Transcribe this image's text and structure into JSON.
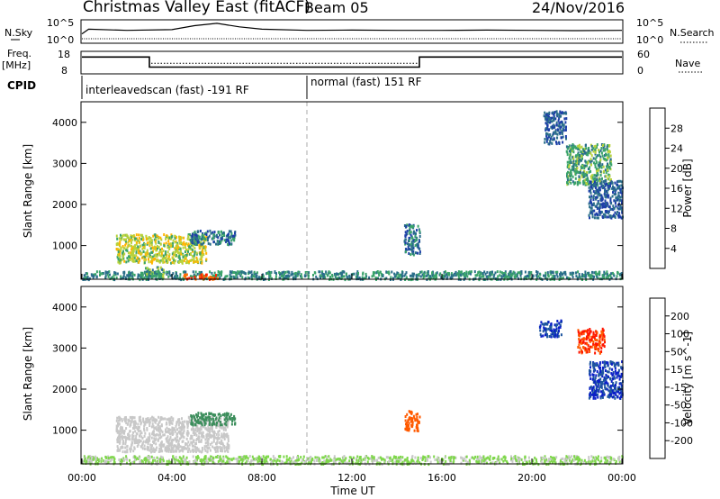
{
  "header": {
    "radar": "Christmas Valley East (fitACF)",
    "beam": "Beam 05",
    "date": "24/Nov/2016"
  },
  "strip_labels": {
    "nsky": "N.Sky",
    "nsky_ticks": [
      "10^5",
      "10^0"
    ],
    "nsearch": "N.Search",
    "nsearch_ticks": [
      "10^5",
      "10^0"
    ],
    "freq_line1": "Freq.",
    "freq_line2": "[MHz]",
    "freq_ticks": [
      "18",
      "8"
    ],
    "nave": "Nave",
    "nave_ticks": [
      "60",
      "0"
    ],
    "cpid": "CPID",
    "cpid_segments": [
      {
        "label": "interleavedscan (fast) -191 RF",
        "start_hr": 0,
        "end_hr": 10
      },
      {
        "label": "normal (fast) 151 RF",
        "start_hr": 10,
        "end_hr": 24
      }
    ]
  },
  "axes": {
    "xlabel": "Time UT",
    "xticks": [
      "00:00",
      "04:00",
      "08:00",
      "12:00",
      "16:00",
      "20:00",
      "00:00"
    ],
    "xlim_hr": [
      0,
      24
    ],
    "ylabel": "Slant Range [km]",
    "yticks": [
      1000,
      2000,
      3000,
      4000
    ],
    "ylim_km": [
      180,
      4500
    ]
  },
  "power_colorbar": {
    "label": "Power [dB]",
    "ticks": [
      "4",
      "8",
      "12",
      "16",
      "20",
      "24",
      "28"
    ],
    "colors": [
      "#0018ff",
      "#1d3fa8",
      "#2a6e8a",
      "#3aa36a",
      "#b8d23c",
      "#ffb400",
      "#ff7000",
      "#ff2000"
    ]
  },
  "velocity_colorbar": {
    "label": "Velocity [m s^-1]",
    "ticks": [
      "200",
      "100",
      "50",
      "15",
      "-15",
      "-50",
      "-100",
      "-200"
    ],
    "colors": [
      "#0a1fc8",
      "#1f56a0",
      "#3c8e5c",
      "#7ed74a",
      "#c8c8c8",
      "#ffd24a",
      "#ff9a1a",
      "#ff5a00",
      "#ff1400"
    ]
  },
  "chart_data": [
    {
      "type": "line",
      "x_hr": [
        0,
        0.3,
        2,
        4,
        5,
        6,
        7,
        8,
        10,
        12,
        14,
        16,
        18,
        20,
        22,
        24
      ],
      "nsky": [
        0.4,
        0.6,
        0.55,
        0.58,
        0.75,
        0.85,
        0.7,
        0.6,
        0.55,
        0.56,
        0.55,
        0.55,
        0.56,
        0.55,
        0.54,
        0.55
      ],
      "freq_mhz": {
        "x_hr": [
          0,
          3,
          3,
          15,
          15,
          24
        ],
        "values": [
          15.5,
          15.5,
          11,
          11,
          15.5,
          15.5
        ]
      },
      "nave": {
        "x_hr": [
          0,
          3,
          3,
          15,
          15,
          24
        ],
        "values": [
          45,
          45,
          28,
          28,
          45,
          45
        ]
      }
    },
    {
      "type": "heatmap",
      "variable": "power",
      "clusters": [
        {
          "t_hr": [
            0,
            24
          ],
          "r_km": [
            200,
            400
          ],
          "value": 12
        },
        {
          "t_hr": [
            4.5,
            6
          ],
          "r_km": [
            200,
            330
          ],
          "value": 28
        },
        {
          "t_hr": [
            1.5,
            5.5
          ],
          "r_km": [
            600,
            1300
          ],
          "value": 18
        },
        {
          "t_hr": [
            4.8,
            6.8
          ],
          "r_km": [
            1050,
            1400
          ],
          "value": 10
        },
        {
          "t_hr": [
            2.8,
            3.6
          ],
          "r_km": [
            200,
            500
          ],
          "value": 14
        },
        {
          "t_hr": [
            14.3,
            15.0
          ],
          "r_km": [
            800,
            1550
          ],
          "value": 10
        },
        {
          "t_hr": [
            21.5,
            23.5
          ],
          "r_km": [
            2500,
            3500
          ],
          "value": 14
        },
        {
          "t_hr": [
            20.5,
            21.5
          ],
          "r_km": [
            3500,
            4300
          ],
          "value": 8
        },
        {
          "t_hr": [
            22.5,
            24
          ],
          "r_km": [
            1700,
            2600
          ],
          "value": 8
        }
      ]
    },
    {
      "type": "heatmap",
      "variable": "velocity",
      "clusters": [
        {
          "t_hr": [
            0,
            24
          ],
          "r_km": [
            200,
            400
          ],
          "value": 20
        },
        {
          "t_hr": [
            1.5,
            6.5
          ],
          "r_km": [
            500,
            1350
          ],
          "value": 0
        },
        {
          "t_hr": [
            4.8,
            6.8
          ],
          "r_km": [
            1150,
            1450
          ],
          "value": 80
        },
        {
          "t_hr": [
            14.3,
            15.0
          ],
          "r_km": [
            1000,
            1500
          ],
          "value": -120
        },
        {
          "t_hr": [
            22.0,
            23.2
          ],
          "r_km": [
            2900,
            3500
          ],
          "value": -200
        },
        {
          "t_hr": [
            20.3,
            21.3
          ],
          "r_km": [
            3300,
            3700
          ],
          "value": 200
        },
        {
          "t_hr": [
            22.5,
            24
          ],
          "r_km": [
            1800,
            2700
          ],
          "value": 200
        }
      ]
    }
  ]
}
